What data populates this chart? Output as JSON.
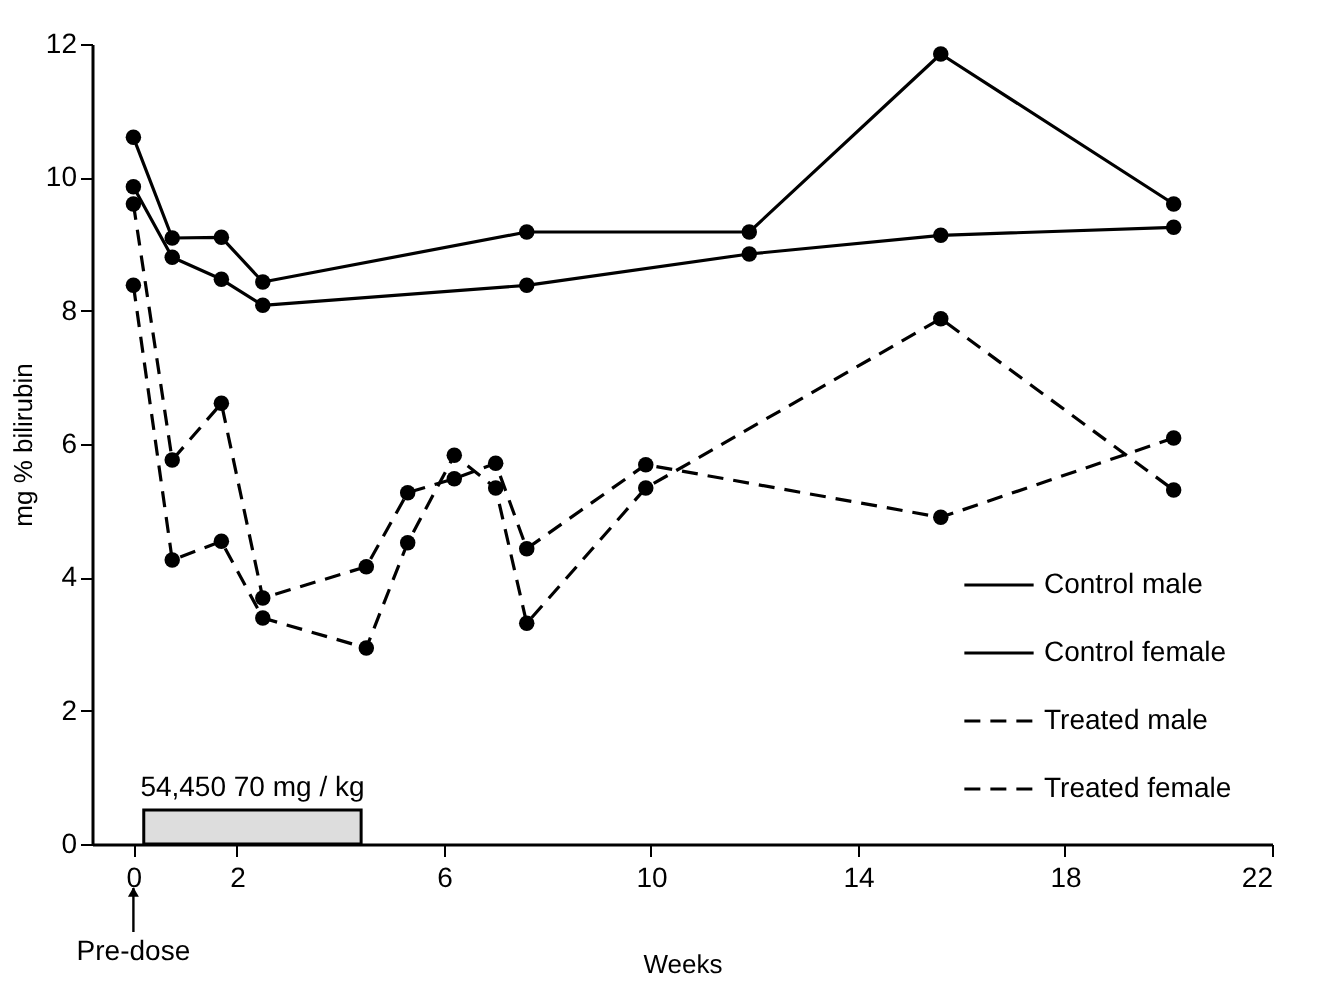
{
  "chart_data": {
    "type": "line",
    "xlabel": "Weeks",
    "ylabel": "mg % bilirubin",
    "xlim": [
      -0.8,
      22
    ],
    "xticks": [
      0,
      2,
      6,
      10,
      14,
      18,
      22
    ],
    "ylim": [
      0,
      12
    ],
    "yticks": [
      0,
      2,
      4,
      6,
      8,
      10,
      12
    ],
    "grid": false,
    "legend": "bottom right",
    "marker": "circle",
    "series": [
      {
        "name": "Control male",
        "color": "#000000",
        "line_style": "solid",
        "x": [
          0,
          0.75,
          1.7,
          2.5,
          7.6,
          11.9,
          15.6,
          20.1
        ],
        "values": [
          9.86,
          8.8,
          8.47,
          8.08,
          8.38,
          8.85,
          9.13,
          9.25
        ]
      },
      {
        "name": "Control female",
        "color": "#000000",
        "line_style": "solid",
        "x": [
          0,
          0.75,
          1.7,
          2.5,
          7.6,
          11.9,
          15.6,
          20.1
        ],
        "values": [
          10.6,
          9.09,
          9.1,
          8.43,
          9.18,
          9.18,
          11.85,
          9.6
        ]
      },
      {
        "name": "Treated male",
        "color": "#000000",
        "line_style": "dashed",
        "x": [
          0,
          0.75,
          1.7,
          2.5,
          4.5,
          5.3,
          6.2,
          7.0,
          7.6,
          9.9,
          15.6,
          20.1
        ],
        "values": [
          9.6,
          5.76,
          6.61,
          3.69,
          4.16,
          5.27,
          5.48,
          5.71,
          4.43,
          5.69,
          4.9,
          6.09
        ]
      },
      {
        "name": "Treated female",
        "color": "#000000",
        "line_style": "dashed",
        "x": [
          0,
          0.75,
          1.7,
          2.5,
          4.5,
          5.3,
          6.2,
          7.0,
          7.6,
          9.9,
          15.6,
          20.1
        ],
        "values": [
          8.38,
          4.26,
          4.54,
          3.39,
          2.94,
          4.52,
          5.83,
          5.34,
          3.31,
          5.34,
          7.88,
          5.31
        ]
      }
    ],
    "bands": [
      {
        "axis": "x",
        "from": 0.2,
        "to": 4.4,
        "label": "54,450 70 mg / kg",
        "color": "#dddddd"
      }
    ],
    "annotations": [
      {
        "text": "Pre-dose",
        "x": 0
      }
    ]
  }
}
